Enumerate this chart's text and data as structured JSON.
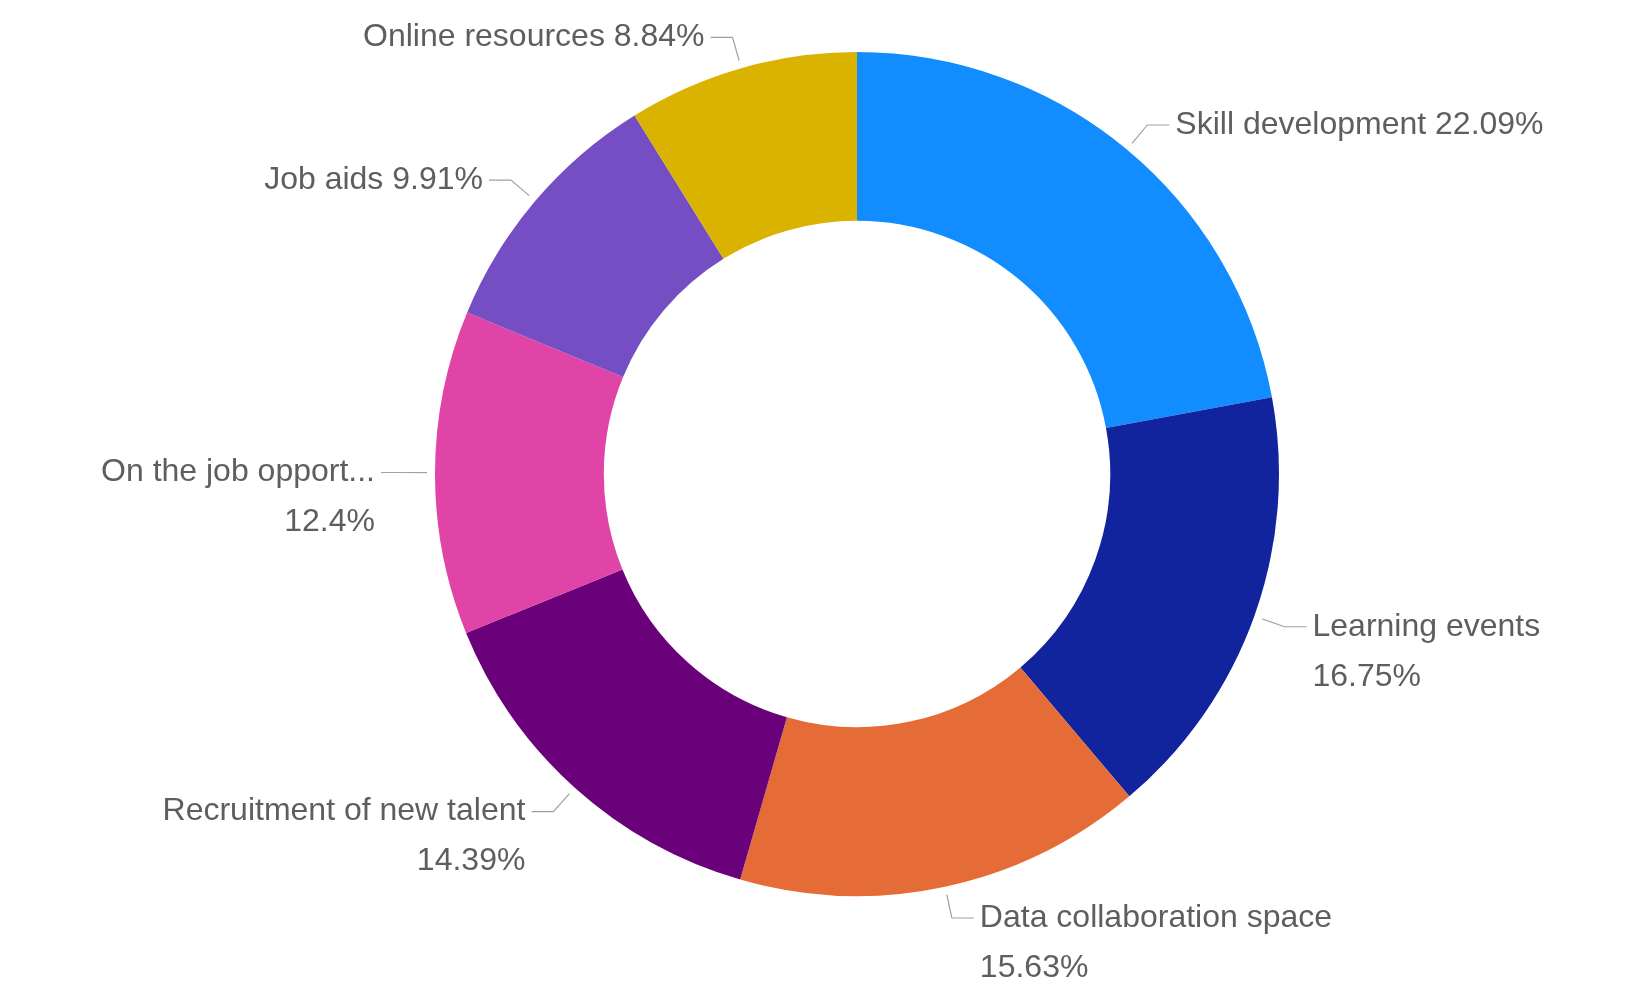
{
  "chart_data": {
    "type": "donut",
    "categories": [
      "Skill development",
      "Learning events",
      "Data collaboration space",
      "Recruitment of new talent",
      "On the job opport...",
      "Job aids",
      "Online resources"
    ],
    "values": [
      22.09,
      16.75,
      15.63,
      14.39,
      12.4,
      9.91,
      8.84
    ],
    "colors": [
      "#118dff",
      "#12239e",
      "#e66c37",
      "#6b007b",
      "#e044a7",
      "#744ec2",
      "#d9b300"
    ],
    "value_labels": [
      "22.09%",
      "16.75%",
      "15.63%",
      "14.39%",
      "12.4%",
      "9.91%",
      "8.84%"
    ],
    "legend": false
  }
}
